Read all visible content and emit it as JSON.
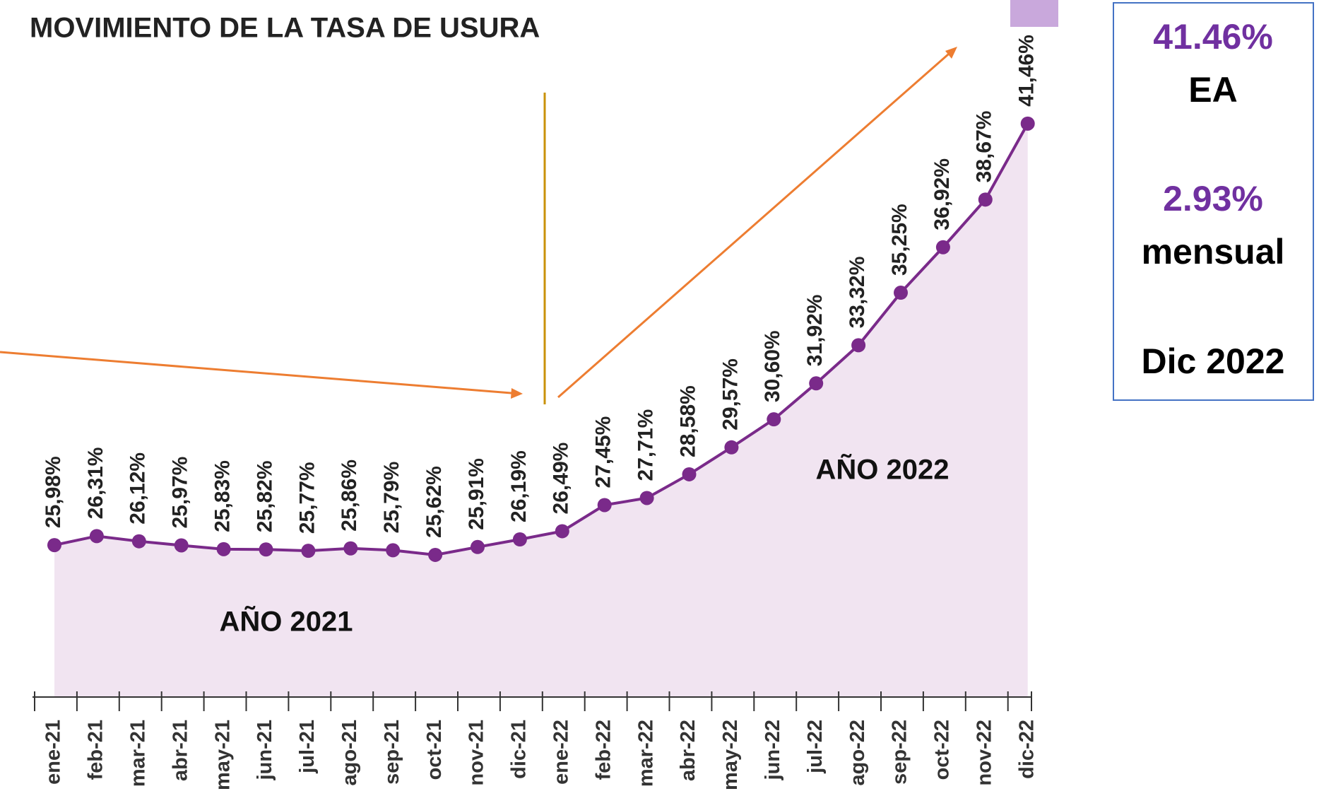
{
  "chart_data": {
    "type": "line",
    "title": "MOVIMIENTO DE LA TASA DE USURA",
    "categories": [
      "ene-21",
      "feb-21",
      "mar-21",
      "abr-21",
      "may-21",
      "jun-21",
      "jul-21",
      "ago-21",
      "sep-21",
      "oct-21",
      "nov-21",
      "dic-21",
      "ene-22",
      "feb-22",
      "mar-22",
      "abr-22",
      "may-22",
      "jun-22",
      "jul-22",
      "ago-22",
      "sep-22",
      "oct-22",
      "nov-22",
      "dic-22"
    ],
    "values": [
      25.98,
      26.31,
      26.12,
      25.97,
      25.83,
      25.82,
      25.77,
      25.86,
      25.79,
      25.62,
      25.91,
      26.19,
      26.49,
      27.45,
      27.71,
      28.58,
      29.57,
      30.6,
      31.92,
      33.32,
      35.25,
      36.92,
      38.67,
      41.46
    ],
    "value_labels": [
      "25,98%",
      "26,31%",
      "26,12%",
      "25,97%",
      "25,83%",
      "25,82%",
      "25,77%",
      "25,86%",
      "25,79%",
      "25,62%",
      "25,91%",
      "26,19%",
      "26,49%",
      "27,45%",
      "27,71%",
      "28,58%",
      "29,57%",
      "30,60%",
      "31,92%",
      "33,32%",
      "35,25%",
      "36,92%",
      "38,67%",
      "41,46%"
    ],
    "color": "#7a2a8a",
    "area_color": "#f1e4f1",
    "ylim": [
      20.4,
      46
    ],
    "annotations": [
      "AÑO 2021",
      "AÑO 2022"
    ],
    "callout": [
      "41.46%",
      "EA",
      "2.93%",
      "mensual",
      "Dic 2022"
    ]
  }
}
